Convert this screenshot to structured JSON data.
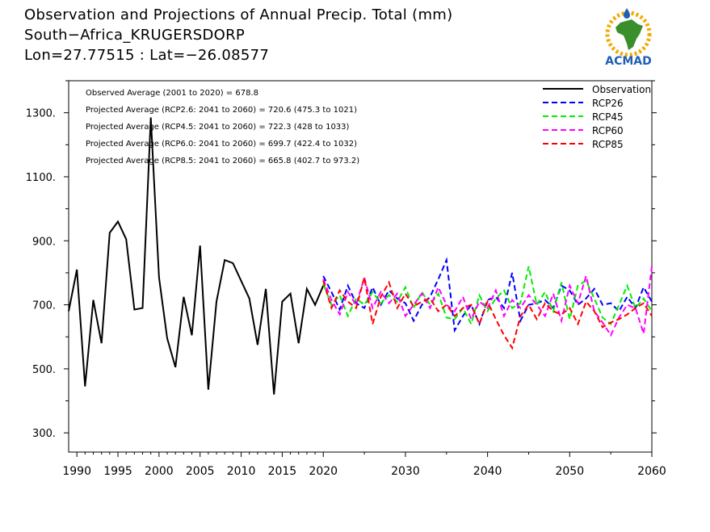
{
  "header": {
    "title": "Observation and Projections of Annual Precip. Total (mm)",
    "location": "South−Africa_KRUGERSDORP",
    "coords": "Lon=27.77515 : Lat=−26.08577"
  },
  "logo": {
    "text": "ACMAD",
    "icon": "acmad-africa-logo"
  },
  "colors": {
    "observation": "#000000",
    "rcp26": "#0000ff",
    "rcp45": "#00ee00",
    "rcp60": "#ff00ff",
    "rcp85": "#ff0000"
  },
  "chart_data": {
    "type": "line",
    "title": "Observation and Projections of Annual Precip. Total (mm)",
    "xlim": [
      1989,
      2060
    ],
    "ylim": [
      240,
      1400
    ],
    "x_ticks": [
      1990,
      1995,
      2000,
      2005,
      2010,
      2015,
      2020,
      2030,
      2040,
      2050,
      2060
    ],
    "x_tick_labels": [
      "1990",
      "1995",
      "2000",
      "2005",
      "2010",
      "2015",
      "2020",
      "2030",
      "2040",
      "2050",
      "2060"
    ],
    "y_ticks": [
      300,
      500,
      700,
      900,
      1100,
      1300
    ],
    "y_tick_labels": [
      "300.",
      "500.",
      "700.",
      "900.",
      "1100.",
      "1300."
    ],
    "legend_position": "top-right",
    "annotations": [
      "Observed Average (2001 to 2020) = 678.8",
      "Projected Average (RCP2.6: 2041 to 2060) = 720.6 (475.3 to 1021)",
      "Projected Average (RCP4.5: 2041 to 2060) = 722.3 (428 to 1033)",
      "Projected Average (RCP6.0: 2041 to 2060) = 699.7 (422.4 to 1032)",
      "Projected Average (RCP8.5: 2041 to 2060) = 665.8 (402.7 to 973.2)"
    ],
    "series": [
      {
        "name": "Observation",
        "style": "solid",
        "x": [
          1989,
          1990,
          1991,
          1992,
          1993,
          1994,
          1995,
          1996,
          1997,
          1998,
          1999,
          2000,
          2001,
          2002,
          2003,
          2004,
          2005,
          2006,
          2007,
          2008,
          2009,
          2010,
          2011,
          2012,
          2013,
          2014,
          2015,
          2016,
          2017,
          2018,
          2019,
          2020
        ],
        "values": [
          680,
          810,
          445,
          715,
          580,
          925,
          960,
          905,
          685,
          690,
          1285,
          785,
          595,
          505,
          725,
          605,
          885,
          435,
          710,
          840,
          830,
          775,
          720,
          575,
          750,
          420,
          710,
          735,
          580,
          750,
          700,
          760
        ]
      },
      {
        "name": "RCP26",
        "style": "dashed",
        "x": [
          2020,
          2021,
          2022,
          2023,
          2024,
          2025,
          2026,
          2027,
          2028,
          2029,
          2030,
          2031,
          2032,
          2033,
          2034,
          2035,
          2036,
          2037,
          2038,
          2039,
          2040,
          2041,
          2042,
          2043,
          2044,
          2045,
          2046,
          2047,
          2048,
          2049,
          2050,
          2051,
          2052,
          2053,
          2054,
          2055,
          2056,
          2057,
          2058,
          2059,
          2060
        ],
        "values": [
          790,
          740,
          685,
          760,
          705,
          690,
          755,
          700,
          745,
          720,
          705,
          650,
          700,
          725,
          780,
          840,
          620,
          665,
          700,
          640,
          715,
          725,
          690,
          800,
          650,
          700,
          705,
          715,
          690,
          760,
          745,
          700,
          720,
          750,
          700,
          705,
          680,
          725,
          690,
          755,
          710
        ]
      },
      {
        "name": "RCP45",
        "style": "dashed",
        "x": [
          2020,
          2021,
          2022,
          2023,
          2024,
          2025,
          2026,
          2027,
          2028,
          2029,
          2030,
          2031,
          2032,
          2033,
          2034,
          2035,
          2036,
          2037,
          2038,
          2039,
          2040,
          2041,
          2042,
          2043,
          2044,
          2045,
          2046,
          2047,
          2048,
          2049,
          2050,
          2051,
          2052,
          2053,
          2054,
          2055,
          2056,
          2057,
          2058,
          2059,
          2060
        ],
        "values": [
          765,
          700,
          730,
          665,
          720,
          700,
          740,
          705,
          730,
          710,
          755,
          690,
          740,
          700,
          735,
          660,
          655,
          690,
          640,
          730,
          680,
          720,
          745,
          690,
          705,
          820,
          700,
          740,
          680,
          770,
          655,
          760,
          775,
          720,
          660,
          640,
          700,
          760,
          690,
          720,
          680
        ]
      },
      {
        "name": "RCP60",
        "style": "dashed",
        "x": [
          2020,
          2021,
          2022,
          2023,
          2024,
          2025,
          2026,
          2027,
          2028,
          2029,
          2030,
          2031,
          2032,
          2033,
          2034,
          2035,
          2036,
          2037,
          2038,
          2039,
          2040,
          2041,
          2042,
          2043,
          2044,
          2045,
          2046,
          2047,
          2048,
          2049,
          2050,
          2051,
          2052,
          2053,
          2054,
          2055,
          2056,
          2057,
          2058,
          2059,
          2060
        ],
        "values": [
          780,
          715,
          670,
          740,
          700,
          785,
          690,
          740,
          705,
          735,
          665,
          700,
          735,
          690,
          755,
          700,
          680,
          725,
          655,
          710,
          690,
          745,
          665,
          715,
          690,
          730,
          700,
          665,
          735,
          650,
          760,
          705,
          790,
          680,
          645,
          605,
          660,
          700,
          690,
          610,
          820
        ]
      },
      {
        "name": "RCP85",
        "style": "dashed",
        "x": [
          2020,
          2021,
          2022,
          2023,
          2024,
          2025,
          2026,
          2027,
          2028,
          2029,
          2030,
          2031,
          2032,
          2033,
          2034,
          2035,
          2036,
          2037,
          2038,
          2039,
          2040,
          2041,
          2042,
          2043,
          2044,
          2045,
          2046,
          2047,
          2048,
          2049,
          2050,
          2051,
          2052,
          2053,
          2054,
          2055,
          2056,
          2057,
          2058,
          2059,
          2060
        ],
        "values": [
          775,
          690,
          745,
          710,
          690,
          785,
          640,
          725,
          770,
          690,
          735,
          695,
          710,
          720,
          680,
          700,
          665,
          690,
          700,
          640,
          710,
          655,
          605,
          565,
          665,
          700,
          655,
          705,
          680,
          670,
          690,
          640,
          710,
          680,
          630,
          645,
          655,
          670,
          690,
          705,
          665
        ]
      }
    ]
  }
}
